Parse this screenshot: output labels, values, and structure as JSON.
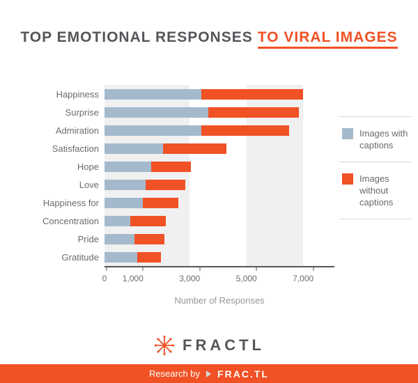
{
  "title": {
    "part1": "TOP EMOTIONAL RESPONSES",
    "part2": "TO VIRAL IMAGES"
  },
  "colors": {
    "orange": "#f05125",
    "blue": "#a4bacc",
    "band": "#f0f0f1",
    "axis": "#54565a",
    "label_gray": "#6a6b6e"
  },
  "chart_data": {
    "type": "bar",
    "orientation": "horizontal",
    "stacked": true,
    "categories": [
      "Happiness",
      "Surprise",
      "Admiration",
      "Satisfaction",
      "Hope",
      "Love",
      "Happiness for",
      "Concentration",
      "Pride",
      "Gratitude"
    ],
    "series": [
      {
        "name": "Images with captions",
        "color_key": "blue",
        "values": [
          3400,
          3650,
          3400,
          2050,
          1650,
          1450,
          1350,
          900,
          1050,
          1150
        ]
      },
      {
        "name": "Images without captions",
        "color_key": "orange",
        "values": [
          3600,
          3200,
          3100,
          2250,
          1400,
          1400,
          1250,
          1250,
          1050,
          850
        ]
      }
    ],
    "xlabel": "Number of Responses",
    "x_ticks": [
      0,
      1000,
      3000,
      5000,
      7000
    ],
    "x_tick_labels": [
      "0",
      "1,000",
      "3,000",
      "5,000",
      "7,000"
    ],
    "xlim": [
      0,
      8100
    ],
    "bands": [
      [
        0,
        3000
      ],
      [
        5000,
        7000
      ]
    ],
    "legend_position": "right",
    "grid": false
  },
  "legend": {
    "items": [
      {
        "label": "Images with captions"
      },
      {
        "label": "Images without captions"
      }
    ]
  },
  "logo": {
    "text": "FRACTL"
  },
  "footer": {
    "prefix": "Research by",
    "brand": "FRAC.TL"
  }
}
